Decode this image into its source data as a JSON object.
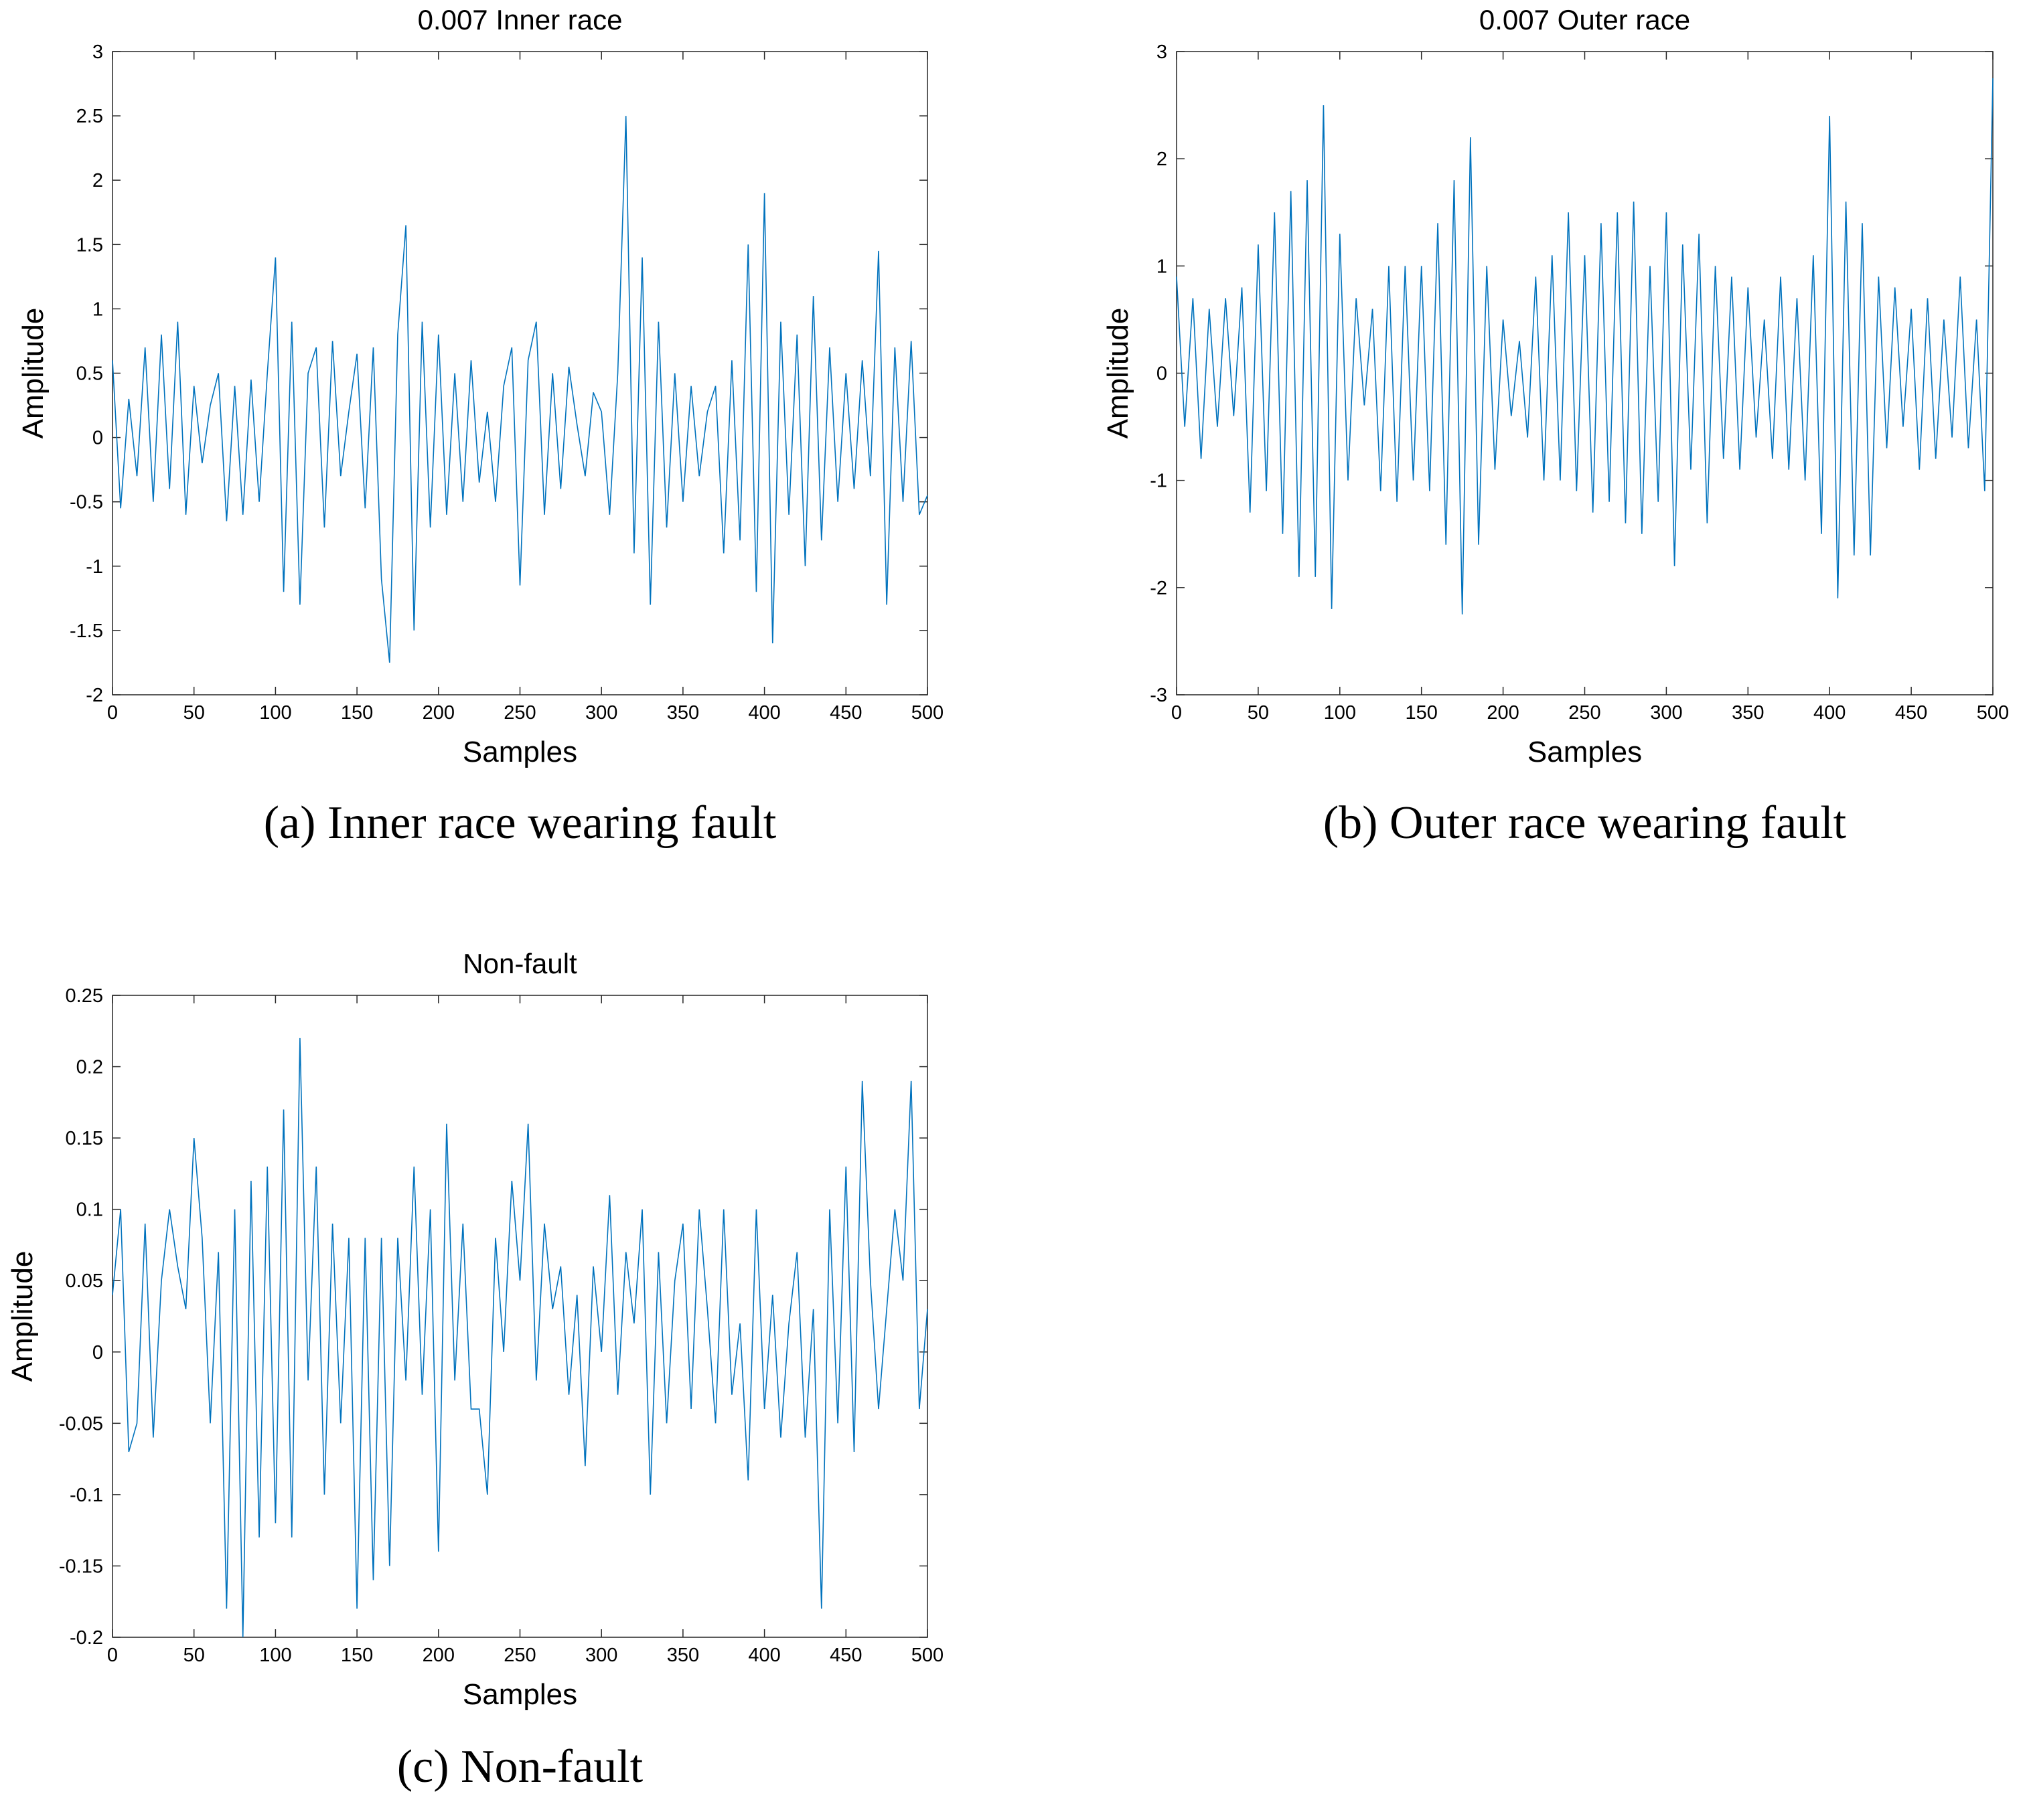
{
  "chart_data": [
    {
      "type": "line",
      "title": "0.007 Inner race",
      "xlabel": "Samples",
      "ylabel": "Amplitude",
      "caption": "(a) Inner race wearing fault",
      "color": "#0072BD",
      "x": [
        0,
        5,
        10,
        15,
        20,
        25,
        30,
        35,
        40,
        45,
        50,
        55,
        60,
        65,
        70,
        75,
        80,
        85,
        90,
        95,
        100,
        105,
        110,
        115,
        120,
        125,
        130,
        135,
        140,
        145,
        150,
        155,
        160,
        165,
        170,
        175,
        180,
        185,
        190,
        195,
        200,
        205,
        210,
        215,
        220,
        225,
        230,
        235,
        240,
        245,
        250,
        255,
        260,
        265,
        270,
        275,
        280,
        285,
        290,
        295,
        300,
        305,
        310,
        315,
        320,
        325,
        330,
        335,
        340,
        345,
        350,
        355,
        360,
        365,
        370,
        375,
        380,
        385,
        390,
        395,
        400,
        405,
        410,
        415,
        420,
        425,
        430,
        435,
        440,
        445,
        450,
        455,
        460,
        465,
        470,
        475,
        480,
        485,
        490,
        495,
        500
      ],
      "values": [
        0.6,
        -0.55,
        0.3,
        -0.3,
        0.7,
        -0.5,
        0.8,
        -0.4,
        0.9,
        -0.6,
        0.4,
        -0.2,
        0.25,
        0.5,
        -0.65,
        0.4,
        -0.6,
        0.45,
        -0.5,
        0.5,
        1.4,
        -1.2,
        0.9,
        -1.3,
        0.5,
        0.7,
        -0.7,
        0.75,
        -0.3,
        0.2,
        0.65,
        -0.55,
        0.7,
        -1.1,
        -1.75,
        0.8,
        1.65,
        -1.5,
        0.9,
        -0.7,
        0.8,
        -0.6,
        0.5,
        -0.5,
        0.6,
        -0.35,
        0.2,
        -0.5,
        0.4,
        0.7,
        -1.15,
        0.6,
        0.9,
        -0.6,
        0.5,
        -0.4,
        0.55,
        0.1,
        -0.3,
        0.35,
        0.2,
        -0.6,
        0.5,
        2.5,
        -0.9,
        1.4,
        -1.3,
        0.9,
        -0.7,
        0.5,
        -0.5,
        0.4,
        -0.3,
        0.2,
        0.4,
        -0.9,
        0.6,
        -0.8,
        1.5,
        -1.2,
        1.9,
        -1.6,
        0.9,
        -0.6,
        0.8,
        -1.0,
        1.1,
        -0.8,
        0.7,
        -0.5,
        0.5,
        -0.4,
        0.6,
        -0.3,
        1.45,
        -1.3,
        0.7,
        -0.5,
        0.75,
        -0.6,
        -0.45
      ],
      "xlim": [
        0,
        500
      ],
      "xticks": [
        0,
        50,
        100,
        150,
        200,
        250,
        300,
        350,
        400,
        450,
        500
      ],
      "ylim": [
        -2,
        3
      ],
      "yticks": [
        -2,
        -1.5,
        -1,
        -0.5,
        0,
        0.5,
        1,
        1.5,
        2,
        2.5,
        3
      ]
    },
    {
      "type": "line",
      "title": "0.007 Outer race",
      "xlabel": "Samples",
      "ylabel": "Amplitude",
      "caption": "(b) Outer race wearing fault",
      "color": "#0072BD",
      "x": [
        0,
        5,
        10,
        15,
        20,
        25,
        30,
        35,
        40,
        45,
        50,
        55,
        60,
        65,
        70,
        75,
        80,
        85,
        90,
        95,
        100,
        105,
        110,
        115,
        120,
        125,
        130,
        135,
        140,
        145,
        150,
        155,
        160,
        165,
        170,
        175,
        180,
        185,
        190,
        195,
        200,
        205,
        210,
        215,
        220,
        225,
        230,
        235,
        240,
        245,
        250,
        255,
        260,
        265,
        270,
        275,
        280,
        285,
        290,
        295,
        300,
        305,
        310,
        315,
        320,
        325,
        330,
        335,
        340,
        345,
        350,
        355,
        360,
        365,
        370,
        375,
        380,
        385,
        390,
        395,
        400,
        405,
        410,
        415,
        420,
        425,
        430,
        435,
        440,
        445,
        450,
        455,
        460,
        465,
        470,
        475,
        480,
        485,
        490,
        495,
        500
      ],
      "values": [
        0.9,
        -0.5,
        0.7,
        -0.8,
        0.6,
        -0.5,
        0.7,
        -0.4,
        0.8,
        -1.3,
        1.2,
        -1.1,
        1.5,
        -1.5,
        1.7,
        -1.9,
        1.8,
        -1.9,
        2.5,
        -2.2,
        1.3,
        -1.0,
        0.7,
        -0.3,
        0.6,
        -1.1,
        1.0,
        -1.2,
        1.0,
        -1.0,
        1.0,
        -1.1,
        1.4,
        -1.6,
        1.8,
        -2.25,
        2.2,
        -1.6,
        1.0,
        -0.9,
        0.5,
        -0.4,
        0.3,
        -0.6,
        0.9,
        -1.0,
        1.1,
        -1.0,
        1.5,
        -1.1,
        1.1,
        -1.3,
        1.4,
        -1.2,
        1.5,
        -1.4,
        1.6,
        -1.5,
        1.0,
        -1.2,
        1.5,
        -1.8,
        1.2,
        -0.9,
        1.3,
        -1.4,
        1.0,
        -0.8,
        0.9,
        -0.9,
        0.8,
        -0.6,
        0.5,
        -0.8,
        0.9,
        -0.9,
        0.7,
        -1.0,
        1.1,
        -1.5,
        2.4,
        -2.1,
        1.6,
        -1.7,
        1.4,
        -1.7,
        0.9,
        -0.7,
        0.8,
        -0.5,
        0.6,
        -0.9,
        0.7,
        -0.8,
        0.5,
        -0.6,
        0.9,
        -0.7,
        0.5,
        -1.1,
        2.75
      ],
      "xlim": [
        0,
        500
      ],
      "xticks": [
        0,
        50,
        100,
        150,
        200,
        250,
        300,
        350,
        400,
        450,
        500
      ],
      "ylim": [
        -3,
        3
      ],
      "yticks": [
        -3,
        -2,
        -1,
        0,
        1,
        2,
        3
      ]
    },
    {
      "type": "line",
      "title": "Non-fault",
      "xlabel": "Samples",
      "ylabel": "Amplitude",
      "caption": "(c) Non-fault",
      "color": "#0072BD",
      "x": [
        0,
        5,
        10,
        15,
        20,
        25,
        30,
        35,
        40,
        45,
        50,
        55,
        60,
        65,
        70,
        75,
        80,
        85,
        90,
        95,
        100,
        105,
        110,
        115,
        120,
        125,
        130,
        135,
        140,
        145,
        150,
        155,
        160,
        165,
        170,
        175,
        180,
        185,
        190,
        195,
        200,
        205,
        210,
        215,
        220,
        225,
        230,
        235,
        240,
        245,
        250,
        255,
        260,
        265,
        270,
        275,
        280,
        285,
        290,
        295,
        300,
        305,
        310,
        315,
        320,
        325,
        330,
        335,
        340,
        345,
        350,
        355,
        360,
        365,
        370,
        375,
        380,
        385,
        390,
        395,
        400,
        405,
        410,
        415,
        420,
        425,
        430,
        435,
        440,
        445,
        450,
        455,
        460,
        465,
        470,
        475,
        480,
        485,
        490,
        495,
        500
      ],
      "values": [
        0.04,
        0.1,
        -0.07,
        -0.05,
        0.09,
        -0.06,
        0.05,
        0.1,
        0.06,
        0.03,
        0.15,
        0.08,
        -0.05,
        0.07,
        -0.18,
        0.1,
        -0.2,
        0.12,
        -0.13,
        0.13,
        -0.12,
        0.17,
        -0.13,
        0.22,
        -0.02,
        0.13,
        -0.1,
        0.09,
        -0.05,
        0.08,
        -0.18,
        0.08,
        -0.16,
        0.08,
        -0.15,
        0.08,
        -0.02,
        0.13,
        -0.03,
        0.1,
        -0.14,
        0.16,
        -0.02,
        0.09,
        -0.04,
        -0.04,
        -0.1,
        0.08,
        0.0,
        0.12,
        0.05,
        0.16,
        -0.02,
        0.09,
        0.03,
        0.06,
        -0.03,
        0.04,
        -0.08,
        0.06,
        0.0,
        0.11,
        -0.03,
        0.07,
        0.02,
        0.1,
        -0.1,
        0.07,
        -0.05,
        0.05,
        0.09,
        -0.04,
        0.1,
        0.03,
        -0.05,
        0.1,
        -0.03,
        0.02,
        -0.09,
        0.1,
        -0.04,
        0.04,
        -0.06,
        0.02,
        0.07,
        -0.06,
        0.03,
        -0.18,
        0.1,
        -0.05,
        0.13,
        -0.07,
        0.19,
        0.05,
        -0.04,
        0.03,
        0.1,
        0.05,
        0.19,
        -0.04,
        0.03
      ],
      "xlim": [
        0,
        500
      ],
      "xticks": [
        0,
        50,
        100,
        150,
        200,
        250,
        300,
        350,
        400,
        450,
        500
      ],
      "ylim": [
        -0.2,
        0.25
      ],
      "yticks": [
        -0.2,
        -0.15,
        -0.1,
        -0.05,
        0,
        0.05,
        0.1,
        0.15,
        0.2,
        0.25
      ]
    }
  ]
}
